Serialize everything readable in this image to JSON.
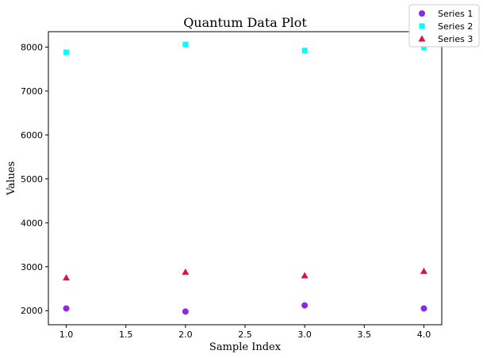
{
  "chart_data": {
    "type": "scatter",
    "title": "Quantum Data Plot",
    "xlabel": "Sample Index",
    "ylabel": "Values",
    "x": [
      1.0,
      2.0,
      3.0,
      4.0
    ],
    "xlim": [
      0.85,
      4.15
    ],
    "ylim": [
      1680,
      8350
    ],
    "xticks": [
      "1.0",
      "1.5",
      "2.0",
      "2.5",
      "3.0",
      "3.5",
      "4.0"
    ],
    "yticks": [
      "2000",
      "3000",
      "4000",
      "5000",
      "6000",
      "7000",
      "8000"
    ],
    "grid": false,
    "legend_position": "top-right",
    "series": [
      {
        "name": "Series 1",
        "marker": "circle",
        "color": "#8a2be2",
        "values": [
          2050,
          1980,
          2120,
          2050
        ]
      },
      {
        "name": "Series 2",
        "marker": "square",
        "color": "#00ffff",
        "values": [
          7880,
          8060,
          7920,
          7990
        ]
      },
      {
        "name": "Series 3",
        "marker": "triangle",
        "color": "#dc143c",
        "values": [
          2750,
          2880,
          2800,
          2900
        ]
      }
    ]
  }
}
